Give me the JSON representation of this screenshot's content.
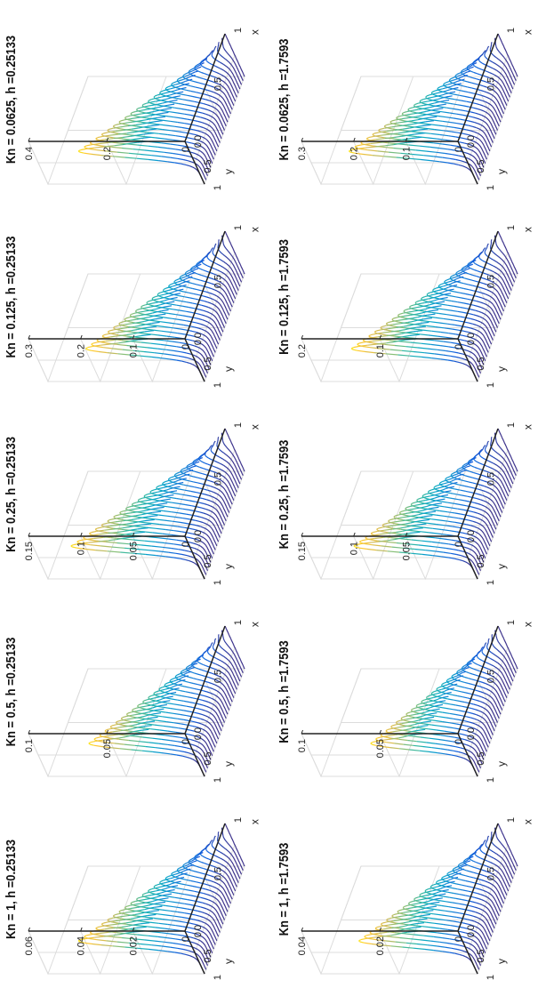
{
  "figure": {
    "colormap": [
      "#352a87",
      "#0f5cdd",
      "#1481d6",
      "#06a4ca",
      "#2eb7a4",
      "#87bf77",
      "#d1bb59",
      "#fec832",
      "#f9fb0e"
    ],
    "axis_color": "#222222",
    "grid_color": "#dcdcdc"
  },
  "chart_data": [
    {
      "type": "surface",
      "title": "Kn = 1, h =0.25133",
      "xlabel": "x",
      "ylabel": "y",
      "xticks": [
        "0",
        "0.5",
        "1"
      ],
      "yticks": [
        "1",
        "0.5",
        "0"
      ],
      "zlim": [
        0,
        0.06
      ],
      "zticks": [
        "0",
        "0.02",
        "0.04",
        "0.06"
      ],
      "peak": 0.045,
      "dip": 0.012
    },
    {
      "type": "surface",
      "title": "Kn = 0.5, h =0.25133",
      "xlabel": "x",
      "ylabel": "y",
      "xticks": [
        "0",
        "0.5",
        "1"
      ],
      "yticks": [
        "1",
        "0.5",
        "0"
      ],
      "zlim": [
        0,
        0.1
      ],
      "zticks": [
        "0",
        "0.05",
        "0.1"
      ],
      "peak": 0.068,
      "dip": 0.02
    },
    {
      "type": "surface",
      "title": "Kn = 0.25, h =0.25133",
      "xlabel": "x",
      "ylabel": "y",
      "xticks": [
        "0",
        "0.5",
        "1"
      ],
      "yticks": [
        "1",
        "0.5",
        "0"
      ],
      "zlim": [
        0,
        0.15
      ],
      "zticks": [
        "0",
        "0.05",
        "0.1",
        "0.15"
      ],
      "peak": 0.12,
      "dip": 0.03
    },
    {
      "type": "surface",
      "title": "Kn = 0.125, h =0.25133",
      "xlabel": "x",
      "ylabel": "y",
      "xticks": [
        "0",
        "0.5",
        "1"
      ],
      "yticks": [
        "1",
        "0.5",
        "0"
      ],
      "zlim": [
        0,
        0.3
      ],
      "zticks": [
        "0",
        "0.1",
        "0.2",
        "0.3"
      ],
      "peak": 0.21,
      "dip": 0.05
    },
    {
      "type": "surface",
      "title": "Kn = 0.0625, h =0.25133",
      "xlabel": "x",
      "ylabel": "y",
      "xticks": [
        "0",
        "0.5",
        "1"
      ],
      "yticks": [
        "1",
        "0.5",
        "0"
      ],
      "zlim": [
        0,
        0.4
      ],
      "zticks": [
        "0",
        "0.2",
        "0.4"
      ],
      "peak": 0.3,
      "dip": 0.06
    },
    {
      "type": "surface",
      "title": "Kn = 1, h =1.7593",
      "xlabel": "x",
      "ylabel": "y",
      "xticks": [
        "0",
        "0.5",
        "1"
      ],
      "yticks": [
        "1",
        "0.5",
        "0"
      ],
      "zlim": [
        0,
        0.04
      ],
      "zticks": [
        "0",
        "0.02",
        "0.04"
      ],
      "peak": 0.028,
      "dip": 0.008
    },
    {
      "type": "surface",
      "title": "Kn = 0.5, h =1.7593",
      "xlabel": "x",
      "ylabel": "y",
      "xticks": [
        "0",
        "0.5",
        "1"
      ],
      "yticks": [
        "1",
        "0.5",
        "0"
      ],
      "zlim": [
        0,
        0.1
      ],
      "zticks": [
        "0",
        "0.05",
        "0.1"
      ],
      "peak": 0.062,
      "dip": 0.018
    },
    {
      "type": "surface",
      "title": "Kn = 0.25, h =1.7593",
      "xlabel": "x",
      "ylabel": "y",
      "xticks": [
        "0",
        "0.5",
        "1"
      ],
      "yticks": [
        "1",
        "0.5",
        "0"
      ],
      "zlim": [
        0,
        0.15
      ],
      "zticks": [
        "0",
        "0.05",
        "0.1",
        "0.15"
      ],
      "peak": 0.11,
      "dip": 0.03
    },
    {
      "type": "surface",
      "title": "Kn = 0.125, h =1.7593",
      "xlabel": "x",
      "ylabel": "y",
      "xticks": [
        "0",
        "0.5",
        "1"
      ],
      "yticks": [
        "1",
        "0.5",
        "0"
      ],
      "zlim": [
        0,
        0.2
      ],
      "zticks": [
        "0",
        "0.1",
        "0.2"
      ],
      "peak": 0.15,
      "dip": 0.04
    },
    {
      "type": "surface",
      "title": "Kn = 0.0625, h =1.7593",
      "xlabel": "x",
      "ylabel": "y",
      "xticks": [
        "0",
        "0.5",
        "1"
      ],
      "yticks": [
        "1",
        "0.5",
        "0"
      ],
      "zlim": [
        0,
        0.3
      ],
      "zticks": [
        "0",
        "0.1",
        "0.2",
        "0.3"
      ],
      "peak": 0.23,
      "dip": 0.05
    }
  ]
}
